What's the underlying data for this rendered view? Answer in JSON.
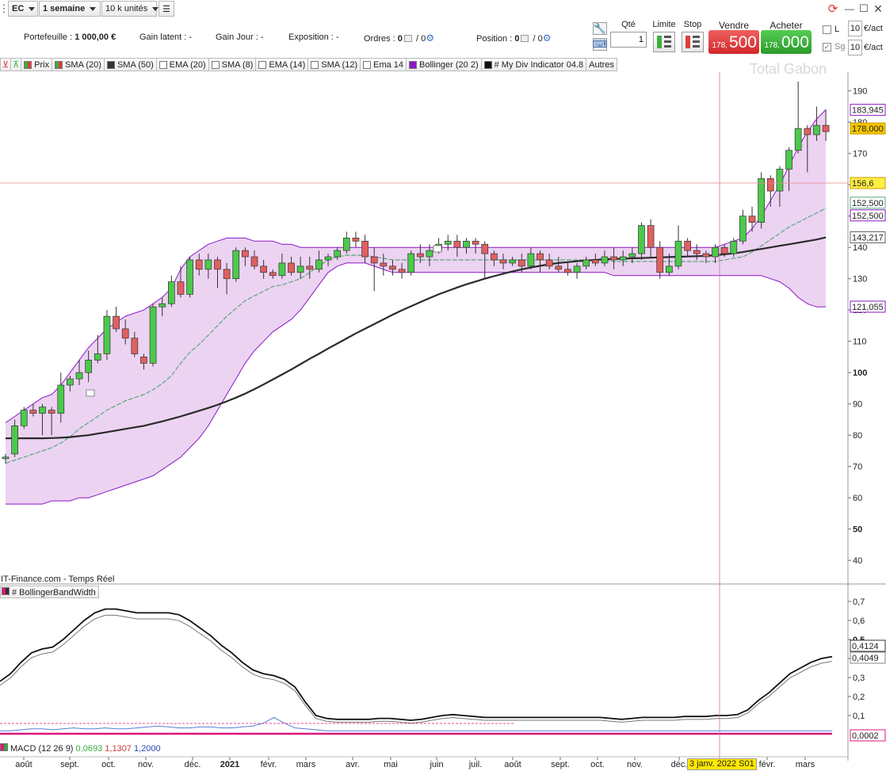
{
  "toolbar": {
    "symbol": "EC",
    "timeframe": "1 semaine",
    "units": "10 k unités"
  },
  "stats": {
    "portfolio_label": "Portefeuille :",
    "portfolio_value": "1 000,00 €",
    "unrealized_label": "Gain latent :",
    "unrealized_value": "-",
    "day_gain_label": "Gain Jour :",
    "day_gain_value": "-",
    "exposure_label": "Exposition :",
    "exposure_value": "-",
    "orders_label": "Ordres :",
    "orders_a": "0",
    "orders_b": "/ 0",
    "position_label": "Position :",
    "position_a": "0",
    "position_b": "/ 0"
  },
  "trade": {
    "qty_label": "Qté",
    "qty_value": "1",
    "limit_label": "Limite",
    "stop_label": "Stop",
    "sell_label": "Vendre",
    "sell_small": "178,",
    "sell_big": "500",
    "buy_label": "Acheter",
    "buy_small": "178,",
    "buy_big": "000",
    "box1_value": "10",
    "box1_unit": "€/act",
    "box2_value": "10",
    "box2_unit": "€/act",
    "l_label": "L",
    "sg_label": "Sg"
  },
  "indicators": {
    "price": "Prix",
    "sma20": "SMA (20)",
    "sma50": "SMA (50)",
    "ema20": "EMA (20)",
    "sma8": "SMA (8)",
    "ema14": "EMA (14)",
    "sma12": "SMA (12)",
    "ema14b": "Ema 14",
    "bollinger": "Bollinger (20 2)",
    "mydiv": "# My Div Indicator 04.8",
    "others": "Autres"
  },
  "chart": {
    "watermark": "Total Gabon",
    "source": "IT-Finance.com - Temps Réel",
    "panel2_title": "# BollingerBandWidth",
    "macd_label": "MACD (12 26 9)",
    "macd_v1": "0,0693",
    "macd_v2": "1,1307",
    "macd_v3": "1,2000",
    "cursor_date": "3 janv. 2022 S01",
    "crosshair_value": "156,6",
    "colors": {
      "up": "#4cc94c",
      "down": "#e06060",
      "band_fill": "#ecd3f2",
      "band_line": "#8c18c8",
      "sma50": "#2a2a2a",
      "sma20": "#55aa77",
      "sell": "#e03c3c",
      "buy": "#3caf3c"
    }
  },
  "chart_data": [
    {
      "type": "candlestick",
      "title": "",
      "ylim": [
        36,
        196
      ],
      "y_ticks": [
        40,
        50,
        60,
        70,
        80,
        90,
        100,
        110,
        120,
        130,
        140,
        150,
        160,
        170,
        180,
        190
      ],
      "x_ticks": [
        "août",
        "sept.",
        "oct.",
        "nov.",
        "déc.",
        "2021",
        "févr.",
        "mars",
        "avr.",
        "mai",
        "juin",
        "juil.",
        "août",
        "sept.",
        "oct.",
        "nov.",
        "déc.",
        "févr.",
        "mars"
      ],
      "last_labels": {
        "bollinger_upper": "183,945",
        "price": "178,000",
        "sma20": "152,500",
        "sma20b": "152,500",
        "sma50": "143,217",
        "bollinger_lower": "121,055"
      },
      "candles_ohlc": [
        [
          72.5,
          74,
          71,
          73
        ],
        [
          74,
          85,
          73,
          83
        ],
        [
          83,
          89,
          82,
          88
        ],
        [
          88,
          90,
          86,
          87
        ],
        [
          87,
          90,
          80,
          89
        ],
        [
          88,
          89,
          80,
          87
        ],
        [
          87,
          100,
          84,
          96
        ],
        [
          96,
          99,
          94,
          98
        ],
        [
          98,
          104,
          96,
          100
        ],
        [
          100,
          107,
          97,
          104
        ],
        [
          104,
          112,
          103,
          106
        ],
        [
          106,
          120,
          104,
          118
        ],
        [
          118,
          121,
          113,
          114
        ],
        [
          114,
          117,
          109,
          111
        ],
        [
          111,
          113,
          105,
          106
        ],
        [
          105,
          106,
          101,
          103
        ],
        [
          103,
          122,
          102,
          121
        ],
        [
          121,
          124,
          118,
          122
        ],
        [
          122,
          131,
          121,
          129
        ],
        [
          129,
          134,
          124,
          125
        ],
        [
          125,
          137,
          124,
          136
        ],
        [
          136,
          138,
          131,
          133
        ],
        [
          133,
          138,
          130,
          136
        ],
        [
          136,
          137,
          127,
          133
        ],
        [
          133,
          135,
          125,
          130
        ],
        [
          130,
          140,
          129,
          139
        ],
        [
          139,
          140,
          134,
          137
        ],
        [
          137,
          139,
          133,
          134
        ],
        [
          134,
          136,
          130,
          132
        ],
        [
          132,
          133,
          130,
          131
        ],
        [
          131,
          138,
          130,
          135
        ],
        [
          135,
          137,
          131,
          132
        ],
        [
          132,
          137,
          130,
          134
        ],
        [
          134,
          137,
          130,
          133
        ],
        [
          133,
          139,
          132,
          136
        ],
        [
          136,
          138,
          134,
          137
        ],
        [
          137,
          140,
          136,
          139
        ],
        [
          139,
          145,
          138,
          143
        ],
        [
          143,
          145,
          140,
          142
        ],
        [
          142,
          144,
          135,
          137
        ],
        [
          137,
          140,
          126,
          135
        ],
        [
          135,
          138,
          131,
          134
        ],
        [
          134,
          136,
          131,
          133
        ],
        [
          133,
          135,
          130,
          132
        ],
        [
          132,
          139,
          131,
          138
        ],
        [
          138,
          141,
          135,
          137
        ],
        [
          137,
          141,
          134,
          139
        ],
        [
          139,
          143,
          138,
          141
        ],
        [
          141,
          144,
          139,
          142
        ],
        [
          142,
          144,
          137,
          140
        ],
        [
          140,
          143,
          138,
          142
        ],
        [
          142,
          143,
          138,
          141
        ],
        [
          141,
          142,
          130,
          138
        ],
        [
          138,
          139,
          134,
          136
        ],
        [
          136,
          138,
          133,
          135
        ],
        [
          135,
          137,
          134,
          136
        ],
        [
          136,
          138,
          132,
          134
        ],
        [
          134,
          140,
          133,
          138
        ],
        [
          138,
          139,
          132,
          136
        ],
        [
          136,
          138,
          133,
          134
        ],
        [
          134,
          137,
          132,
          133
        ],
        [
          133,
          135,
          131,
          132
        ],
        [
          132,
          135,
          130,
          134
        ],
        [
          134,
          137,
          133,
          136
        ],
        [
          136,
          138,
          134,
          135
        ],
        [
          135,
          139,
          134,
          137
        ],
        [
          137,
          140,
          133,
          136
        ],
        [
          136,
          139,
          134,
          137
        ],
        [
          137,
          140,
          135,
          138
        ],
        [
          138,
          148,
          136,
          147
        ],
        [
          147,
          149,
          137,
          140
        ],
        [
          140,
          142,
          130,
          132
        ],
        [
          132,
          138,
          131,
          134
        ],
        [
          134,
          147,
          133,
          142
        ],
        [
          142,
          143,
          137,
          139
        ],
        [
          139,
          141,
          136,
          138
        ],
        [
          138,
          139,
          135,
          137
        ],
        [
          137,
          141,
          135,
          140
        ],
        [
          140,
          141,
          137,
          138
        ],
        [
          138,
          143,
          137,
          142
        ],
        [
          142,
          152,
          141,
          150
        ],
        [
          150,
          153,
          145,
          148
        ],
        [
          148,
          164,
          146,
          162
        ],
        [
          162,
          163,
          153,
          158
        ],
        [
          158,
          166,
          153,
          165
        ],
        [
          165,
          172,
          158,
          171
        ],
        [
          171,
          193,
          170,
          178
        ],
        [
          178,
          179,
          164,
          176
        ],
        [
          176,
          185,
          174,
          179
        ],
        [
          179,
          184,
          174,
          177
        ]
      ],
      "sma50": [
        79,
        79,
        79,
        79,
        79,
        79.1,
        79.2,
        79.4,
        79.7,
        80,
        80.5,
        81,
        81.5,
        82,
        82.5,
        83,
        83.7,
        84.4,
        85.2,
        86,
        86.9,
        87.8,
        88.7,
        89.7,
        90.8,
        92,
        93.3,
        94.7,
        96.2,
        97.8,
        99.4,
        101,
        102.7,
        104.4,
        106,
        107.7,
        109.3,
        110.9,
        112.5,
        114,
        115.5,
        117,
        118.5,
        119.9,
        121.2,
        122.5,
        123.8,
        125,
        126.1,
        127.2,
        128.2,
        129.1,
        130,
        130.8,
        131.6,
        132.3,
        133,
        133.6,
        134.1,
        134.6,
        135,
        135.3,
        135.6,
        135.8,
        136,
        136.2,
        136.3,
        136.4,
        136.5,
        136.6,
        136.7,
        136.8,
        136.9,
        137,
        137.1,
        137.2,
        137.3,
        137.5,
        137.8,
        138.1,
        138.5,
        139,
        139.5,
        140,
        140.5,
        141,
        141.5,
        142,
        142.5,
        143.2
      ],
      "bollinger_upper": [
        84,
        86,
        88,
        90,
        92,
        93,
        96,
        100,
        104,
        108,
        111,
        114,
        116,
        118,
        119,
        120,
        122,
        124,
        127,
        133,
        137,
        139,
        141,
        142,
        143,
        143,
        143,
        142,
        142,
        142,
        141,
        141,
        140,
        140,
        140,
        140,
        140,
        140,
        140,
        140,
        140,
        140,
        140,
        140,
        140,
        140,
        140,
        140,
        140,
        140,
        140,
        140,
        140,
        140,
        140,
        140,
        140,
        140,
        140,
        140,
        140,
        140,
        140,
        140,
        140,
        140,
        140,
        140,
        140,
        140,
        140,
        140,
        140,
        140,
        140,
        140,
        140,
        140,
        141,
        142,
        143,
        146,
        150,
        155,
        160,
        166,
        172,
        177,
        181,
        184
      ],
      "bollinger_lower": [
        58,
        58,
        58,
        58,
        58,
        59,
        59,
        59,
        60,
        60,
        61,
        62,
        63,
        64,
        65,
        66,
        67,
        69,
        71,
        73,
        76,
        79,
        83,
        88,
        93,
        98,
        103,
        107,
        110,
        113,
        115,
        117,
        120,
        124,
        128,
        132,
        134,
        135,
        135,
        135,
        134,
        133,
        132,
        132,
        132,
        132,
        132,
        132,
        132,
        132,
        132,
        132,
        132,
        132,
        132,
        132,
        132,
        132,
        132,
        132,
        132,
        132,
        132,
        132,
        132,
        132,
        131,
        131,
        131,
        131,
        131,
        131,
        131,
        131,
        131,
        131,
        131,
        131,
        131,
        131,
        131,
        131,
        131,
        130,
        129,
        127,
        124,
        122,
        121,
        121
      ]
    },
    {
      "type": "line",
      "title": "# BollingerBandWidth",
      "ylim": [
        0,
        0.75
      ],
      "y_ticks": [
        0.1,
        0.2,
        0.3,
        0.4,
        0.5,
        0.6,
        0.7
      ],
      "y_tick_labels": [
        "0,1",
        "0,2",
        "0,3",
        "0,4",
        "0,5",
        "0,6",
        "0,7"
      ],
      "last_labels": [
        "0,4124",
        "0,4049",
        "0,0002"
      ],
      "series": [
        {
          "values": [
            0.28,
            0.32,
            0.38,
            0.43,
            0.45,
            0.46,
            0.5,
            0.55,
            0.6,
            0.64,
            0.66,
            0.66,
            0.65,
            0.64,
            0.64,
            0.64,
            0.64,
            0.63,
            0.6,
            0.56,
            0.52,
            0.47,
            0.43,
            0.38,
            0.34,
            0.32,
            0.31,
            0.29,
            0.25,
            0.17,
            0.1,
            0.085,
            0.08,
            0.08,
            0.08,
            0.08,
            0.085,
            0.085,
            0.08,
            0.075,
            0.08,
            0.09,
            0.1,
            0.105,
            0.1,
            0.095,
            0.09,
            0.09,
            0.09,
            0.09,
            0.09,
            0.09,
            0.09,
            0.09,
            0.09,
            0.09,
            0.09,
            0.09,
            0.085,
            0.08,
            0.085,
            0.09,
            0.09,
            0.09,
            0.09,
            0.095,
            0.095,
            0.095,
            0.1,
            0.1,
            0.105,
            0.13,
            0.18,
            0.22,
            0.27,
            0.32,
            0.35,
            0.38,
            0.4,
            0.41
          ]
        },
        {
          "values": [
            0.02,
            0.02,
            0.025,
            0.03,
            0.03,
            0.025,
            0.03,
            0.035,
            0.03,
            0.03,
            0.035,
            0.03,
            0.03,
            0.035,
            0.04,
            0.045,
            0.04,
            0.035,
            0.035,
            0.04,
            0.04,
            0.035,
            0.035,
            0.04,
            0.045,
            0.06,
            0.09,
            0.06,
            0.035,
            0.03,
            0.025,
            0.02,
            0.02,
            0.02,
            0.02,
            0.02,
            0.02,
            0.02,
            0.02,
            0.02,
            0.02,
            0.02,
            0.02,
            0.02,
            0.02,
            0.02,
            0.02,
            0.02,
            0.02,
            0.02,
            0.02,
            0.02,
            0.02,
            0.02,
            0.02,
            0.02,
            0.02,
            0.02,
            0.02,
            0.02,
            0.02,
            0.02,
            0.02,
            0.02,
            0.02,
            0.02,
            0.02,
            0.02,
            0.02,
            0.02,
            0.02,
            0.02,
            0.02,
            0.02,
            0.02,
            0.02,
            0.02,
            0.02,
            0.02,
            0.02
          ]
        }
      ]
    }
  ]
}
